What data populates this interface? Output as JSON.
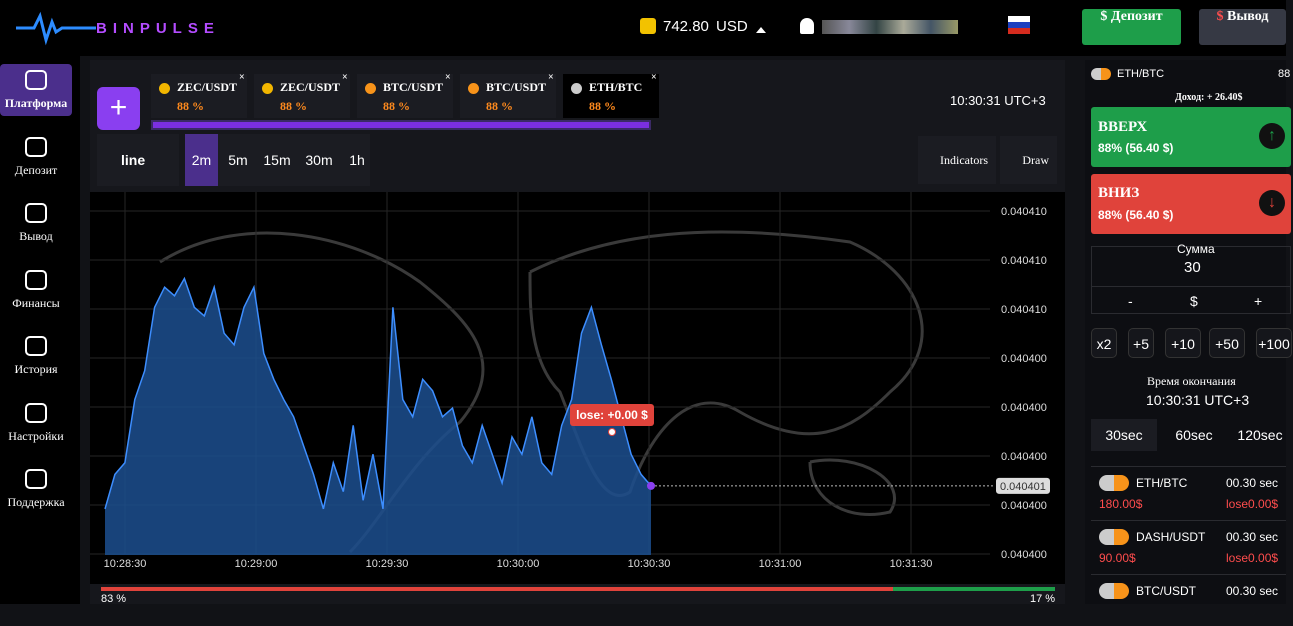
{
  "header": {
    "logo": "BINPULSE",
    "balance": "742.80",
    "currency": "USD",
    "deposit": "Депозит",
    "withdraw": "Вывод"
  },
  "sidebar": [
    "Платформа",
    "Депозит",
    "Вывод",
    "Финансы",
    "История",
    "Настройки",
    "Поддержка"
  ],
  "tabs": [
    {
      "pair": "ZEC/USDT",
      "payout": "88 %"
    },
    {
      "pair": "ZEC/USDT",
      "payout": "88 %"
    },
    {
      "pair": "BTC/USDT",
      "payout": "88 %"
    },
    {
      "pair": "BTC/USDT",
      "payout": "88 %"
    },
    {
      "pair": "ETH/BTC",
      "payout": "88 %"
    }
  ],
  "clock": "10:30:31 UTC+3",
  "toolbar": {
    "chart_type": "line",
    "timeframes": [
      "2m",
      "5m",
      "15m",
      "30m",
      "1h"
    ],
    "indicators": "Indicators",
    "draw": "Draw"
  },
  "chart": {
    "type": "area",
    "color": "#3d8eff",
    "values": [
      0.0404006,
      0.0404018,
      0.0404022,
      0.0404044,
      0.0404054,
      0.0404076,
      0.0404083,
      0.040408,
      0.0404086,
      0.0404076,
      0.0404073,
      0.0404083,
      0.0404067,
      0.0404063,
      0.0404076,
      0.0404083,
      0.040406,
      0.0404051,
      0.0404044,
      0.0404038,
      0.0404028,
      0.0404018,
      0.0404006,
      0.0404022,
      0.0404012,
      0.0404035,
      0.0404009,
      0.0404025,
      0.0404006,
      0.0404076,
      0.0404044,
      0.0404038,
      0.0404051,
      0.0404047,
      0.0404038,
      0.0404041,
      0.0404028,
      0.0404022,
      0.0404035,
      0.0404025,
      0.0404015,
      0.0404031,
      0.0404025,
      0.0404038,
      0.0404022,
      0.0404018,
      0.0404035,
      0.0404044,
      0.0404067,
      0.0404076,
      0.0404063,
      0.0404051,
      0.0404038,
      0.0404025,
      0.0404018,
      0.0404014
    ],
    "ylim": [
      0.040399,
      0.0404115
    ],
    "price_labels": [
      "0.040410",
      "0.040410",
      "0.040410",
      "0.040400",
      "0.040400",
      "0.040400",
      "0.040400",
      "0.040400"
    ],
    "time_labels": [
      "10:28:30",
      "10:29:00",
      "10:29:30",
      "10:30:00",
      "10:30:30",
      "10:31:00",
      "10:31:30"
    ],
    "current_price_label": "0.040401",
    "tooltip": "lose: +0.00 $"
  },
  "sentiment": {
    "down": 83,
    "up": 17,
    "down_label": "83 %",
    "up_label": "17 %"
  },
  "panel": {
    "pair": "ETH/BTC",
    "pair_payout": "88",
    "income": "Доход: + 26.40$",
    "up": "ВВЕРХ",
    "up_payout": "88% (56.40 $)",
    "down": "ВНИЗ",
    "down_payout": "88% (56.40 $)",
    "amount_label": "Сумма",
    "amount": "30",
    "minus": "-",
    "dollar": "$",
    "plus": "+",
    "chips": [
      "x2",
      "+5",
      "+10",
      "+50",
      "+100"
    ],
    "expiry_label": "Время окончания",
    "expiry": "10:30:31 UTC+3",
    "durations": [
      "30sec",
      "60sec",
      "120sec"
    ]
  },
  "trades": [
    {
      "pair": "ETH/BTC",
      "time": "00.30 sec",
      "amount": "180.00$",
      "result": "lose0.00$"
    },
    {
      "pair": "DASH/USDT",
      "time": "00.30 sec",
      "amount": "90.00$",
      "result": "lose0.00$"
    },
    {
      "pair": "BTC/USDT",
      "time": "00.30 sec",
      "amount": "",
      "result": ""
    }
  ]
}
